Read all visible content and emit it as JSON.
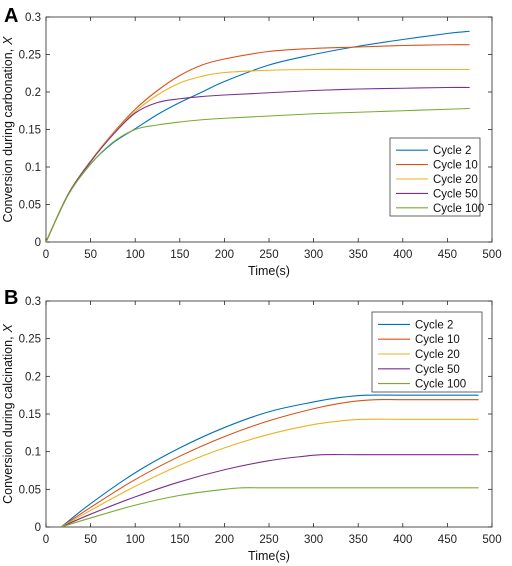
{
  "chart_data": [
    {
      "panel_label": "A",
      "type": "line",
      "xlabel": "Time(s)",
      "ylabel": "Conversion during carbonation, X",
      "ylabel_main": "Conversion during carbonation,",
      "ylabel_var": "X",
      "xlim": [
        0,
        500
      ],
      "ylim": [
        0,
        0.3
      ],
      "xticks": [
        "0",
        "50",
        "100",
        "150",
        "200",
        "250",
        "300",
        "350",
        "400",
        "450",
        "500"
      ],
      "yticks": [
        "0",
        "0.05",
        "0.1",
        "0.15",
        "0.2",
        "0.25",
        "0.3"
      ],
      "legend_position": "lower-right",
      "series": [
        {
          "name": "Cycle 2",
          "color": "#0072BD",
          "x": [
            0,
            25,
            50,
            75,
            100,
            125,
            150,
            175,
            200,
            250,
            300,
            350,
            400,
            450,
            475
          ],
          "y": [
            0,
            0.063,
            0.104,
            0.132,
            0.151,
            0.17,
            0.186,
            0.2,
            0.214,
            0.236,
            0.25,
            0.261,
            0.27,
            0.278,
            0.281
          ]
        },
        {
          "name": "Cycle 10",
          "color": "#D95319",
          "x": [
            0,
            25,
            50,
            75,
            100,
            125,
            150,
            175,
            200,
            250,
            300,
            350,
            400,
            450,
            475
          ],
          "y": [
            0,
            0.064,
            0.108,
            0.145,
            0.177,
            0.202,
            0.222,
            0.236,
            0.244,
            0.254,
            0.258,
            0.26,
            0.262,
            0.263,
            0.263
          ]
        },
        {
          "name": "Cycle 20",
          "color": "#EDB120",
          "x": [
            0,
            25,
            50,
            75,
            100,
            125,
            150,
            175,
            200,
            250,
            300,
            350,
            400,
            450,
            475
          ],
          "y": [
            0,
            0.064,
            0.108,
            0.144,
            0.174,
            0.196,
            0.212,
            0.221,
            0.226,
            0.229,
            0.23,
            0.23,
            0.23,
            0.23,
            0.23
          ]
        },
        {
          "name": "Cycle 50",
          "color": "#7E2F8E",
          "x": [
            0,
            25,
            50,
            75,
            100,
            125,
            150,
            175,
            200,
            250,
            300,
            350,
            400,
            450,
            475
          ],
          "y": [
            0,
            0.064,
            0.107,
            0.143,
            0.172,
            0.186,
            0.191,
            0.194,
            0.196,
            0.199,
            0.202,
            0.204,
            0.205,
            0.206,
            0.206
          ]
        },
        {
          "name": "Cycle 100",
          "color": "#77AC30",
          "x": [
            0,
            25,
            50,
            75,
            100,
            125,
            150,
            175,
            200,
            250,
            300,
            350,
            400,
            450,
            475
          ],
          "y": [
            0,
            0.063,
            0.104,
            0.133,
            0.15,
            0.156,
            0.16,
            0.163,
            0.165,
            0.168,
            0.171,
            0.173,
            0.175,
            0.177,
            0.178
          ]
        }
      ]
    },
    {
      "panel_label": "B",
      "type": "line",
      "xlabel": "Time(s)",
      "ylabel": "Conversion during calcination, X",
      "ylabel_main": "Conversion during calcination,",
      "ylabel_var": "X",
      "xlim": [
        0,
        500
      ],
      "ylim": [
        0,
        0.3
      ],
      "xticks": [
        "0",
        "50",
        "100",
        "150",
        "200",
        "250",
        "300",
        "350",
        "400",
        "450",
        "500"
      ],
      "yticks": [
        "0",
        "0.05",
        "0.1",
        "0.15",
        "0.2",
        "0.25",
        "0.3"
      ],
      "legend_position": "upper-right",
      "series": [
        {
          "name": "Cycle 2",
          "color": "#0072BD",
          "x": [
            17,
            50,
            100,
            150,
            200,
            250,
            300,
            330,
            360,
            400,
            450,
            485
          ],
          "y": [
            0,
            0.031,
            0.072,
            0.105,
            0.132,
            0.153,
            0.166,
            0.172,
            0.175,
            0.175,
            0.175,
            0.175
          ]
        },
        {
          "name": "Cycle 10",
          "color": "#D95319",
          "x": [
            17,
            50,
            100,
            150,
            200,
            250,
            300,
            340,
            370,
            400,
            450,
            485
          ],
          "y": [
            0,
            0.026,
            0.063,
            0.094,
            0.12,
            0.141,
            0.157,
            0.166,
            0.169,
            0.169,
            0.169,
            0.169
          ]
        },
        {
          "name": "Cycle 20",
          "color": "#EDB120",
          "x": [
            17,
            50,
            100,
            150,
            200,
            250,
            300,
            340,
            360,
            400,
            450,
            485
          ],
          "y": [
            0,
            0.022,
            0.054,
            0.082,
            0.105,
            0.123,
            0.136,
            0.142,
            0.143,
            0.143,
            0.143,
            0.143
          ]
        },
        {
          "name": "Cycle 50",
          "color": "#7E2F8E",
          "x": [
            17,
            50,
            100,
            150,
            200,
            250,
            290,
            310,
            350,
            400,
            450,
            485
          ],
          "y": [
            0,
            0.017,
            0.04,
            0.06,
            0.076,
            0.088,
            0.094,
            0.096,
            0.096,
            0.096,
            0.096,
            0.096
          ]
        },
        {
          "name": "Cycle 100",
          "color": "#77AC30",
          "x": [
            17,
            50,
            100,
            150,
            200,
            220,
            250,
            300,
            350,
            400,
            450,
            485
          ],
          "y": [
            0,
            0.012,
            0.029,
            0.042,
            0.05,
            0.052,
            0.052,
            0.052,
            0.052,
            0.052,
            0.052,
            0.052
          ]
        }
      ]
    }
  ]
}
